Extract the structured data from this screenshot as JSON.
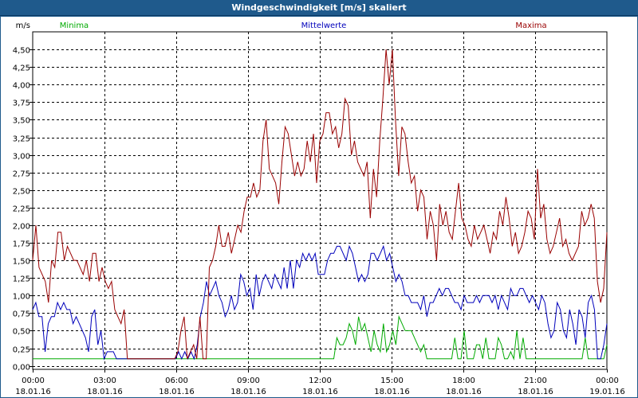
{
  "window": {
    "title": "Windgeschwindigkeit [m/s] skaliert"
  },
  "chart_data": {
    "type": "line",
    "title": "Windgeschwindigkeit [m/s] skaliert",
    "ylabel": "m/s",
    "xlabel": "",
    "ylim": [
      -0.05,
      4.75
    ],
    "xlim": [
      0,
      24
    ],
    "grid": true,
    "y_ticks": [
      "0,00",
      "0,25",
      "0,50",
      "0,75",
      "1,00",
      "1,25",
      "1,50",
      "1,75",
      "2,00",
      "2,25",
      "2,50",
      "2,75",
      "3,00",
      "3,25",
      "3,50",
      "3,75",
      "4,00",
      "4,25",
      "4,50"
    ],
    "x_ticks": [
      {
        "time": "00:00",
        "date": "18.01.16"
      },
      {
        "time": "03:00",
        "date": "18.01.16"
      },
      {
        "time": "06:00",
        "date": "18.01.16"
      },
      {
        "time": "09:00",
        "date": "18.01.16"
      },
      {
        "time": "12:00",
        "date": "18.01.16"
      },
      {
        "time": "15:00",
        "date": "18.01.16"
      },
      {
        "time": "18:00",
        "date": "18.01.16"
      },
      {
        "time": "21:00",
        "date": "18.01.16"
      },
      {
        "time": "00:00",
        "date": "19.01.16"
      }
    ],
    "legend_position": "top",
    "series": [
      {
        "name": "Minima",
        "color": "#00aa00",
        "values": [
          0.1,
          0.1,
          0.1,
          0.1,
          0.1,
          0.1,
          0.1,
          0.1,
          0.1,
          0.1,
          0.1,
          0.1,
          0.1,
          0.1,
          0.1,
          0.1,
          0.1,
          0.1,
          0.1,
          0.1,
          0.1,
          0.1,
          0.1,
          0.1,
          0.1,
          0.1,
          0.1,
          0.1,
          0.1,
          0.1,
          0.1,
          0.1,
          0.1,
          0.1,
          0.1,
          0.1,
          0.1,
          0.1,
          0.1,
          0.1,
          0.1,
          0.1,
          0.1,
          0.1,
          0.1,
          0.1,
          0.1,
          0.1,
          0.1,
          0.1,
          0.1,
          0.1,
          0.1,
          0.1,
          0.1,
          0.1,
          0.1,
          0.1,
          0.1,
          0.1,
          0.1,
          0.1,
          0.1,
          0.1,
          0.1,
          0.1,
          0.1,
          0.1,
          0.1,
          0.1,
          0.1,
          0.1,
          0.1,
          0.1,
          0.1,
          0.1,
          0.1,
          0.1,
          0.1,
          0.1,
          0.1,
          0.1,
          0.1,
          0.1,
          0.1,
          0.1,
          0.1,
          0.1,
          0.1,
          0.1,
          0.1,
          0.1,
          0.1,
          0.1,
          0.1,
          0.1,
          0.1,
          0.1,
          0.4,
          0.3,
          0.3,
          0.4,
          0.6,
          0.5,
          0.3,
          0.7,
          0.5,
          0.6,
          0.4,
          0.2,
          0.5,
          0.3,
          0.2,
          0.6,
          0.2,
          0.3,
          0.5,
          0.3,
          0.7,
          0.6,
          0.5,
          0.5,
          0.5,
          0.4,
          0.3,
          0.2,
          0.3,
          0.1,
          0.1,
          0.1,
          0.1,
          0.1,
          0.1,
          0.1,
          0.1,
          0.1,
          0.4,
          0.1,
          0.1,
          0.5,
          0.1,
          0.1,
          0.1,
          0.3,
          0.3,
          0.1,
          0.4,
          0.1,
          0.1,
          0.1,
          0.4,
          0.3,
          0.1,
          0.1,
          0.2,
          0.1,
          0.5,
          0.1,
          0.4,
          0.1,
          0.1,
          0.1,
          0.1,
          0.1,
          0.1,
          0.1,
          0.1,
          0.1,
          0.1,
          0.1,
          0.1,
          0.1,
          0.1,
          0.1,
          0.1,
          0.1,
          0.1,
          0.1,
          0.4,
          0.1,
          0.1,
          0.1,
          0.1,
          0.1,
          0.1,
          0.3
        ]
      },
      {
        "name": "Mittelwerte",
        "color": "#0000bb",
        "values": [
          0.8,
          0.9,
          0.7,
          0.7,
          0.2,
          0.6,
          0.7,
          0.7,
          0.9,
          0.8,
          0.9,
          0.8,
          0.8,
          0.6,
          0.7,
          0.6,
          0.5,
          0.4,
          0.2,
          0.7,
          0.8,
          0.3,
          0.5,
          0.1,
          0.2,
          0.2,
          0.2,
          0.1,
          0.1,
          0.1,
          0.1,
          0.1,
          0.1,
          0.1,
          0.1,
          0.1,
          0.1,
          0.1,
          0.1,
          0.1,
          0.1,
          0.1,
          0.1,
          0.1,
          0.1,
          0.1,
          0.1,
          0.2,
          0.1,
          0.2,
          0.1,
          0.2,
          0.1,
          0.3,
          0.7,
          0.9,
          1.2,
          1.0,
          1.1,
          1.2,
          1.0,
          0.9,
          0.7,
          0.8,
          1.0,
          0.8,
          0.9,
          1.3,
          1.2,
          1.0,
          1.1,
          0.8,
          1.3,
          1.0,
          1.2,
          1.3,
          1.2,
          1.1,
          1.3,
          1.2,
          1.1,
          1.4,
          1.1,
          1.5,
          1.1,
          1.5,
          1.4,
          1.6,
          1.5,
          1.6,
          1.5,
          1.6,
          1.3,
          1.3,
          1.3,
          1.5,
          1.6,
          1.6,
          1.7,
          1.7,
          1.6,
          1.5,
          1.7,
          1.6,
          1.4,
          1.2,
          1.3,
          1.2,
          1.3,
          1.6,
          1.6,
          1.5,
          1.6,
          1.7,
          1.5,
          1.6,
          1.4,
          1.2,
          1.3,
          1.2,
          1.0,
          1.0,
          0.9,
          0.9,
          0.9,
          0.8,
          1.0,
          0.7,
          0.9,
          0.9,
          1.0,
          1.1,
          1.0,
          1.1,
          1.1,
          1.0,
          0.9,
          0.9,
          0.8,
          1.0,
          0.9,
          0.9,
          0.9,
          1.0,
          0.9,
          1.0,
          1.0,
          1.0,
          0.9,
          1.0,
          0.8,
          1.0,
          0.9,
          0.8,
          1.1,
          1.0,
          1.0,
          1.1,
          1.1,
          1.0,
          0.9,
          1.0,
          0.9,
          0.8,
          1.0,
          0.9,
          0.6,
          0.4,
          0.5,
          0.9,
          0.8,
          0.5,
          0.4,
          0.8,
          0.6,
          0.3,
          0.8,
          0.7,
          0.4,
          0.9,
          1.0,
          0.8,
          0.1,
          0.1,
          0.3,
          0.6
        ]
      },
      {
        "name": "Maxima",
        "color": "#990000",
        "values": [
          1.5,
          2.0,
          1.4,
          1.3,
          1.2,
          0.9,
          1.5,
          1.4,
          1.9,
          1.9,
          1.5,
          1.7,
          1.6,
          1.5,
          1.5,
          1.4,
          1.3,
          1.5,
          1.2,
          1.6,
          1.6,
          1.2,
          1.4,
          1.2,
          1.1,
          1.2,
          0.8,
          0.7,
          0.6,
          0.8,
          0.1,
          0.1,
          0.1,
          0.1,
          0.1,
          0.1,
          0.1,
          0.1,
          0.1,
          0.1,
          0.1,
          0.1,
          0.1,
          0.1,
          0.1,
          0.1,
          0.2,
          0.5,
          0.7,
          0.1,
          0.2,
          0.3,
          0.1,
          0.7,
          0.1,
          0.1,
          1.4,
          1.5,
          1.7,
          2.0,
          1.7,
          1.7,
          1.9,
          1.6,
          1.8,
          2.0,
          1.9,
          2.2,
          2.4,
          2.4,
          2.6,
          2.4,
          2.5,
          3.2,
          3.5,
          2.8,
          2.7,
          2.6,
          2.3,
          2.9,
          3.4,
          3.3,
          3.0,
          2.7,
          2.9,
          2.7,
          2.8,
          3.2,
          2.9,
          3.3,
          2.6,
          3.2,
          3.3,
          3.6,
          3.6,
          3.3,
          3.4,
          3.1,
          3.3,
          3.8,
          3.7,
          3.0,
          3.2,
          2.9,
          2.8,
          2.7,
          2.9,
          2.1,
          2.8,
          2.4,
          3.2,
          3.8,
          4.5,
          4.0,
          4.5,
          3.5,
          2.7,
          3.4,
          3.3,
          2.9,
          2.6,
          2.7,
          2.2,
          2.5,
          2.4,
          1.8,
          2.2,
          2.0,
          1.5,
          2.3,
          2.0,
          2.2,
          1.9,
          1.8,
          2.2,
          2.6,
          2.1,
          2.0,
          1.8,
          1.7,
          2.0,
          1.8,
          1.9,
          2.0,
          1.8,
          1.6,
          1.9,
          1.8,
          2.2,
          2.0,
          2.4,
          2.1,
          1.7,
          1.9,
          1.6,
          1.7,
          1.9,
          2.2,
          2.1,
          1.8,
          2.8,
          2.1,
          2.3,
          1.8,
          1.6,
          1.7,
          1.9,
          2.1,
          1.7,
          1.8,
          1.6,
          1.5,
          1.6,
          1.7,
          2.2,
          2.0,
          2.1,
          2.3,
          2.1,
          1.2,
          0.9,
          1.1,
          1.9
        ]
      }
    ]
  }
}
